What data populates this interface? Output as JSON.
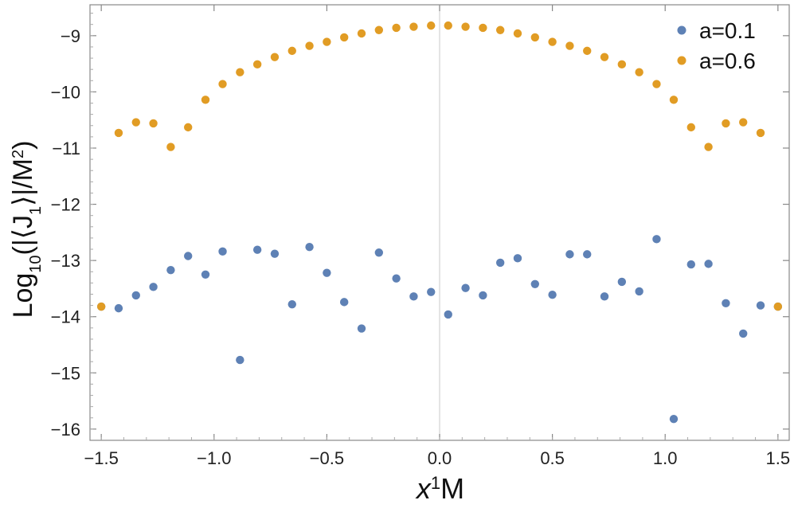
{
  "chart_data": {
    "type": "scatter",
    "title": "",
    "xlabel": {
      "base": "x",
      "sup": "1",
      "tail": "M"
    },
    "ylabel": {
      "prefix": "Log",
      "sub": "10",
      "mid": "(|⟨J",
      "sub2": "1",
      "mid2": "⟩|/M",
      "sup": "2",
      "suffix": ")"
    },
    "xlim": [
      -1.55,
      1.55
    ],
    "ylim": [
      -16.2,
      -8.45
    ],
    "xticks": [
      -1.5,
      -1.0,
      -0.5,
      0.0,
      0.5,
      1.0,
      1.5
    ],
    "xtick_labels": [
      "−1.5",
      "−1.0",
      "−0.5",
      "0.0",
      "0.5",
      "1.0",
      "1.5"
    ],
    "yticks": [
      -16,
      -15,
      -14,
      -13,
      -12,
      -11,
      -10,
      -9
    ],
    "ytick_labels": [
      "−16",
      "−15",
      "−14",
      "−13",
      "−12",
      "−11",
      "−10",
      "−9"
    ],
    "grid": false,
    "zero_line": true,
    "legend_position": "top-right",
    "series": [
      {
        "name": "a=0.1",
        "color": "#5e81b5",
        "x": [
          -1.5,
          -1.423,
          -1.346,
          -1.269,
          -1.192,
          -1.115,
          -1.038,
          -0.962,
          -0.885,
          -0.808,
          -0.731,
          -0.654,
          -0.577,
          -0.5,
          -0.423,
          -0.346,
          -0.269,
          -0.192,
          -0.115,
          -0.038,
          0.038,
          0.115,
          0.192,
          0.269,
          0.346,
          0.423,
          0.5,
          0.577,
          0.654,
          0.731,
          0.808,
          0.885,
          0.962,
          1.038,
          1.115,
          1.192,
          1.269,
          1.346,
          1.423,
          1.5
        ],
        "y": [
          -13.82,
          -13.85,
          -13.62,
          -13.47,
          -13.17,
          -12.92,
          -13.25,
          -12.84,
          -14.77,
          -12.81,
          -12.88,
          -13.78,
          -12.76,
          -13.22,
          -13.74,
          -14.21,
          -12.86,
          -13.32,
          -13.64,
          -13.56,
          -13.96,
          -13.49,
          -13.62,
          -13.04,
          -12.96,
          -13.42,
          -13.61,
          -12.89,
          -12.89,
          -13.64,
          -13.38,
          -13.55,
          -12.62,
          -15.82,
          -13.07,
          -13.06,
          -13.76,
          -14.3,
          -13.8,
          -13.82
        ]
      },
      {
        "name": "a=0.6",
        "color": "#e19c24",
        "x": [
          -1.5,
          -1.423,
          -1.346,
          -1.269,
          -1.192,
          -1.115,
          -1.038,
          -0.962,
          -0.885,
          -0.808,
          -0.731,
          -0.654,
          -0.577,
          -0.5,
          -0.423,
          -0.346,
          -0.269,
          -0.192,
          -0.115,
          -0.038,
          0.038,
          0.115,
          0.192,
          0.269,
          0.346,
          0.423,
          0.5,
          0.577,
          0.654,
          0.731,
          0.808,
          0.885,
          0.962,
          1.038,
          1.115,
          1.192,
          1.269,
          1.346,
          1.423,
          1.5
        ],
        "y": [
          -13.82,
          -10.73,
          -10.54,
          -10.56,
          -10.98,
          -10.63,
          -10.14,
          -9.86,
          -9.65,
          -9.51,
          -9.38,
          -9.27,
          -9.18,
          -9.11,
          -9.03,
          -8.96,
          -8.9,
          -8.86,
          -8.84,
          -8.82,
          -8.82,
          -8.84,
          -8.86,
          -8.9,
          -8.96,
          -9.03,
          -9.11,
          -9.18,
          -9.27,
          -9.38,
          -9.51,
          -9.65,
          -9.86,
          -10.14,
          -10.63,
          -10.98,
          -10.56,
          -10.54,
          -10.73,
          -13.82
        ]
      }
    ]
  }
}
